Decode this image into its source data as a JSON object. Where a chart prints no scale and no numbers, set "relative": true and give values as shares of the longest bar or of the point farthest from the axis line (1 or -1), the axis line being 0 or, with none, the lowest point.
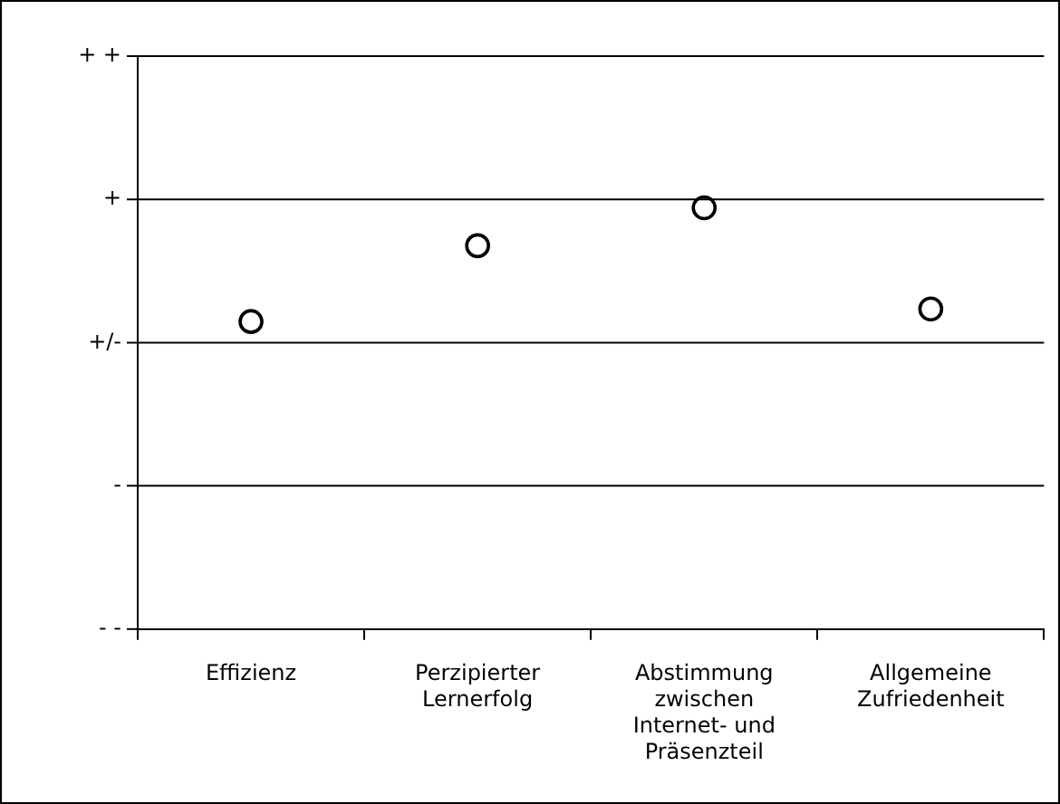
{
  "chart_data": {
    "type": "scatter",
    "categories": [
      "Effizienz",
      "Perzipierter Lernerfolg",
      "Abstimmung zwischen Internet- und Präsenzteil",
      "Allgemeine Zufriedenheit"
    ],
    "series": [
      {
        "color": "#000000",
        "values": [
          0.73,
          0.91,
          1,
          0.76
        ]
      }
    ],
    "relative": true,
    "annotations": [
      "- -"
    ],
    "ref_lines": [
      {
        "axis": "y",
        "value": 0.34,
        "label": "-",
        "color": "#000000"
      },
      {
        "axis": "y",
        "value": 0.68,
        "label": "+/-",
        "color": "#000000"
      },
      {
        "axis": "y",
        "value": 1.02,
        "label": "+",
        "color": "#000000"
      },
      {
        "axis": "y",
        "value": 1.36,
        "label": "+ +",
        "color": "#000000"
      }
    ],
    "legend": false,
    "marker": "circle"
  }
}
